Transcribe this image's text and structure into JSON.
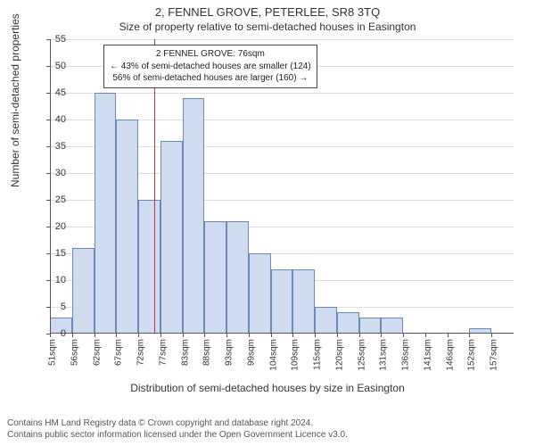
{
  "title": "2, FENNEL GROVE, PETERLEE, SR8 3TQ",
  "subtitle": "Size of property relative to semi-detached houses in Easington",
  "ylabel": "Number of semi-detached properties",
  "xlabel": "Distribution of semi-detached houses by size in Easington",
  "chart": {
    "type": "histogram",
    "bar_fill": "#cfdcef",
    "bar_stroke": "#6b88b8",
    "grid_color": "#dddddd",
    "background_color": "#ffffff",
    "ylim": [
      0,
      55
    ],
    "ytick_step": 5,
    "marker_color": "#cc3333",
    "marker_x": 76,
    "xticks": [
      51,
      56,
      62,
      67,
      72,
      77,
      83,
      88,
      93,
      99,
      104,
      109,
      115,
      120,
      125,
      131,
      136,
      141,
      146,
      152,
      157
    ],
    "xtick_suffix": "sqm",
    "bars": [
      {
        "x": 51,
        "v": 3
      },
      {
        "x": 56,
        "v": 16
      },
      {
        "x": 62,
        "v": 45
      },
      {
        "x": 67,
        "v": 40
      },
      {
        "x": 72,
        "v": 25
      },
      {
        "x": 77,
        "v": 36
      },
      {
        "x": 83,
        "v": 44
      },
      {
        "x": 88,
        "v": 21
      },
      {
        "x": 93,
        "v": 21
      },
      {
        "x": 99,
        "v": 15
      },
      {
        "x": 104,
        "v": 12
      },
      {
        "x": 109,
        "v": 12
      },
      {
        "x": 115,
        "v": 5
      },
      {
        "x": 120,
        "v": 4
      },
      {
        "x": 125,
        "v": 3
      },
      {
        "x": 131,
        "v": 3
      },
      {
        "x": 136,
        "v": 0
      },
      {
        "x": 141,
        "v": 0
      },
      {
        "x": 146,
        "v": 0
      },
      {
        "x": 152,
        "v": 1
      },
      {
        "x": 157,
        "v": 0
      }
    ]
  },
  "annotation": {
    "line1": "2 FENNEL GROVE: 76sqm",
    "line2": "← 43% of semi-detached houses are smaller (124)",
    "line3": "56% of semi-detached houses are larger (160) →"
  },
  "footer": {
    "line1": "Contains HM Land Registry data © Crown copyright and database right 2024.",
    "line2": "Contains public sector information licensed under the Open Government Licence v3.0."
  }
}
